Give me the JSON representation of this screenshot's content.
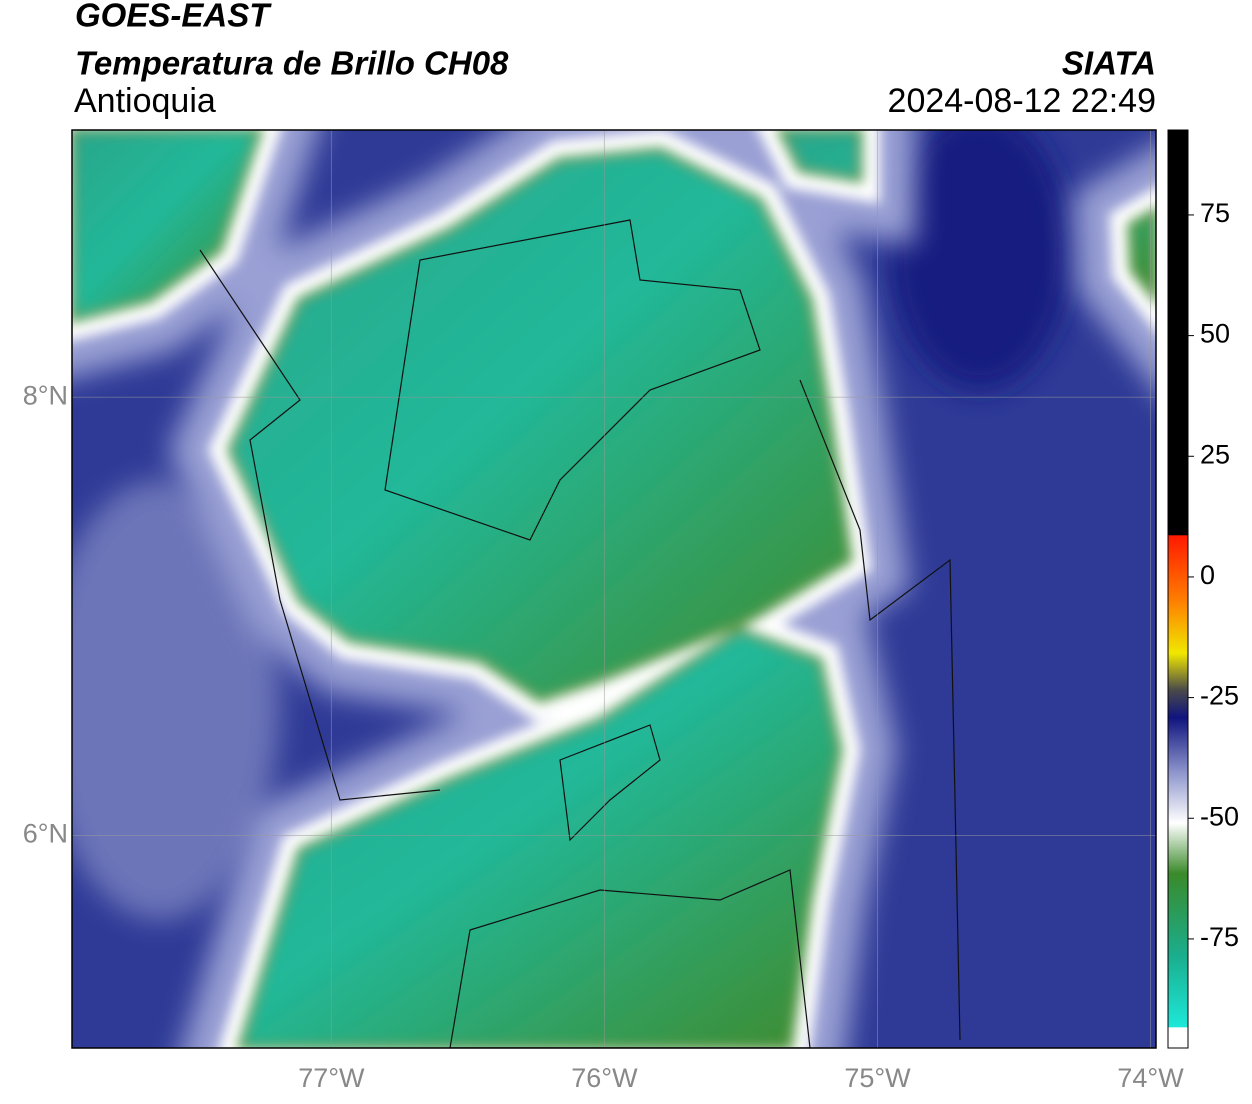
{
  "header": {
    "title": "GOES-EAST",
    "subtitle": "Temperatura de Brillo CH08",
    "org": "SIATA",
    "region": "Antioquia",
    "datetime": "2024-08-12 22:49"
  },
  "map": {
    "xlim": [
      -77.95,
      -73.98
    ],
    "ylim": [
      5.03,
      9.22
    ],
    "xticks": [
      {
        "value": -77,
        "label": "77°W"
      },
      {
        "value": -76,
        "label": "76°W"
      },
      {
        "value": -75,
        "label": "75°W"
      },
      {
        "value": -74,
        "label": "74°W"
      }
    ],
    "yticks": [
      {
        "value": 8,
        "label": "8°N"
      },
      {
        "value": 6,
        "label": "6°N"
      }
    ],
    "grid": true
  },
  "colorbar": {
    "lim": [
      -97.6,
      92.6
    ],
    "ticks": [
      75,
      50,
      25,
      0,
      -25,
      -50,
      -75
    ]
  }
}
